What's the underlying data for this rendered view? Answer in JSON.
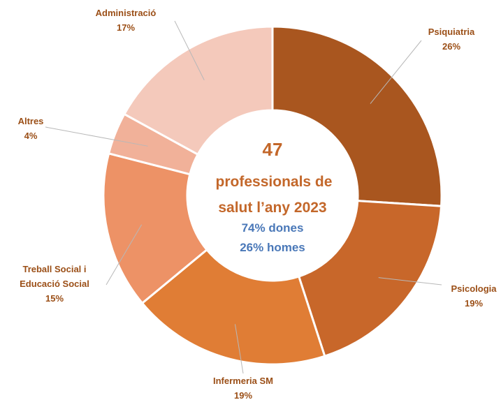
{
  "chart_data": {
    "type": "pie",
    "donut": true,
    "categories": [
      "Psiquiatria",
      "Psicologia",
      "Infermeria SM",
      "Treball Social i Educació Social",
      "Altres",
      "Administració"
    ],
    "values": [
      26,
      19,
      19,
      15,
      4,
      17
    ],
    "labels": [
      {
        "lines": [
          "Psiquiatria",
          "26%"
        ]
      },
      {
        "lines": [
          "Psicologia",
          "19%"
        ]
      },
      {
        "lines": [
          "Infermeria SM",
          "19%"
        ]
      },
      {
        "lines": [
          "Treball Social i",
          "Educació Social",
          "15%"
        ]
      },
      {
        "lines": [
          "Altres",
          "4%"
        ]
      },
      {
        "lines": [
          "Administració",
          "17%"
        ]
      }
    ],
    "colors": [
      "#a9561f",
      "#c8672a",
      "#e07d35",
      "#ed9266",
      "#f1b199",
      "#f4c9bb"
    ],
    "label_color": "#9b4f17",
    "center": {
      "count": "47",
      "line1": "professionals de",
      "line2": "salut l’any 2023",
      "stat1": "74% dones",
      "stat2": "26% homes"
    },
    "center_colors": {
      "main": "#c3672a",
      "stats": "#4a78b8"
    }
  }
}
